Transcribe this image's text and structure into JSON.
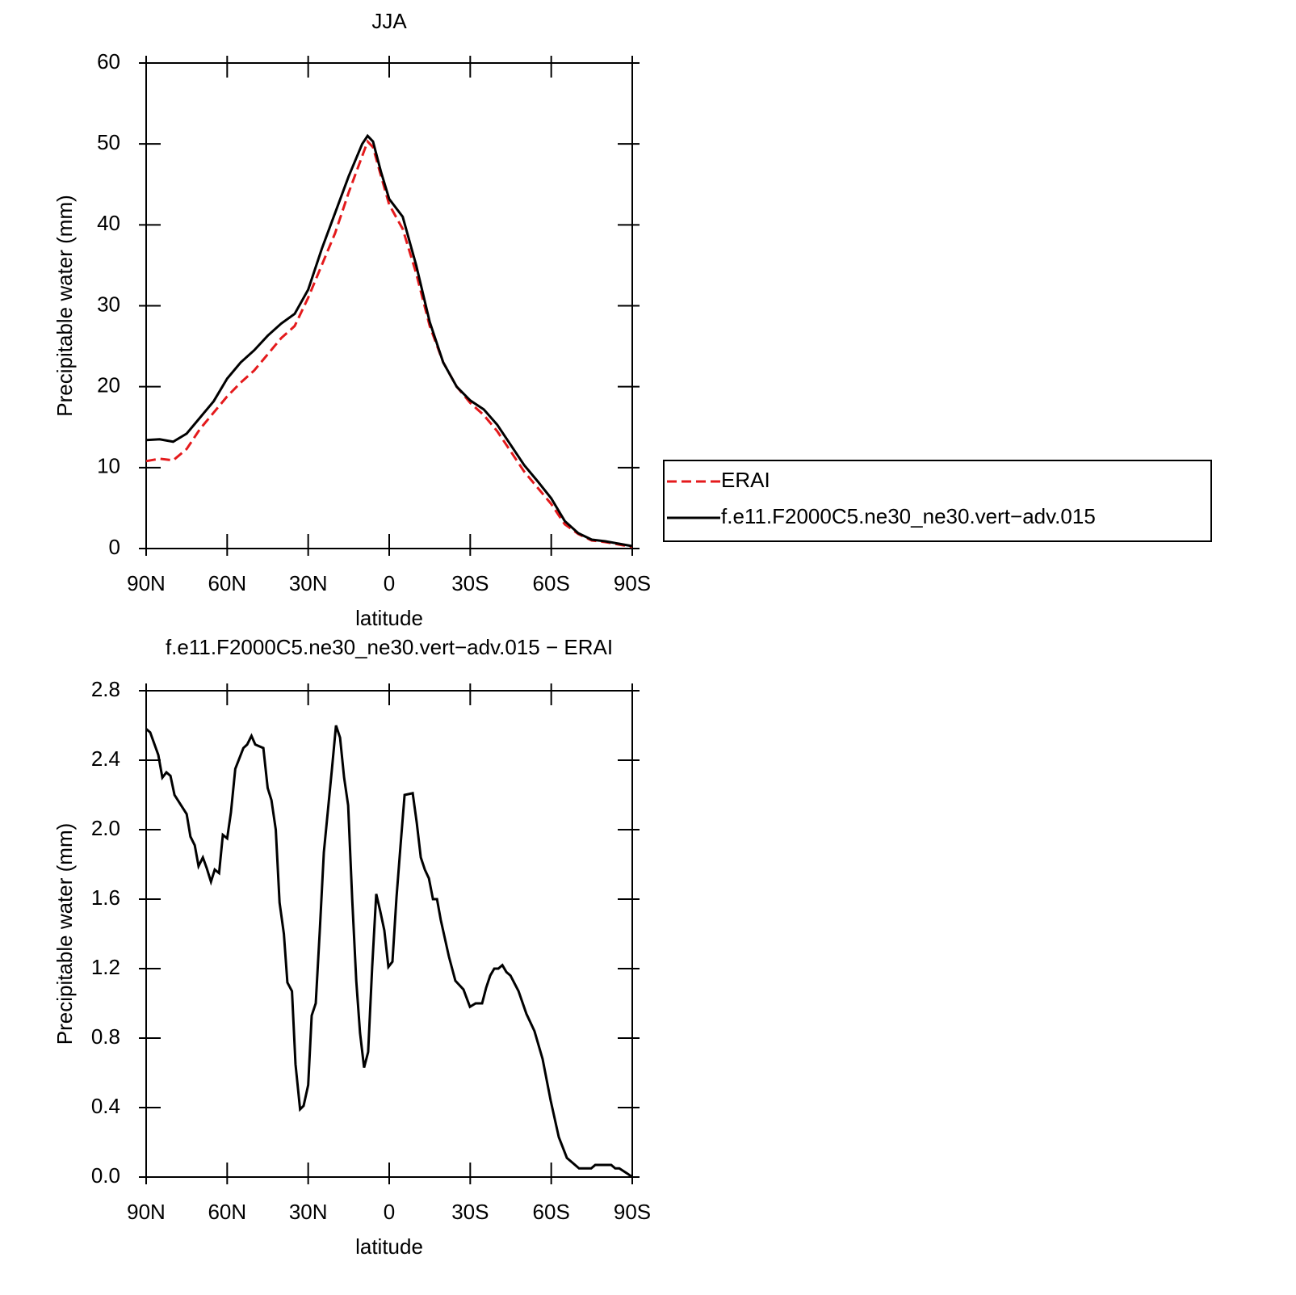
{
  "chart_data": [
    {
      "type": "line",
      "title": "JJA",
      "xlabel": "latitude",
      "ylabel": "Precipitable water (mm)",
      "x": [
        90,
        85,
        80,
        75,
        70,
        65,
        60,
        55,
        50,
        45,
        40,
        35,
        30,
        25,
        20,
        15,
        10,
        8,
        6,
        3,
        0,
        -5,
        -10,
        -15,
        -20,
        -25,
        -30,
        -35,
        -40,
        -45,
        -50,
        -55,
        -60,
        -65,
        -70,
        -75,
        -80,
        -85,
        -90
      ],
      "series": [
        {
          "name": "ERAI",
          "color": "#e41a1c",
          "dash": "dashed",
          "values": [
            10.8,
            11.1,
            10.9,
            12.3,
            14.8,
            16.8,
            18.8,
            20.5,
            22.0,
            24.0,
            26.0,
            27.5,
            31,
            35,
            39,
            44,
            48.5,
            50.3,
            49.6,
            46,
            42.5,
            39.5,
            34,
            27.5,
            23,
            20,
            18,
            16.5,
            14.5,
            12,
            9.5,
            7.5,
            5.5,
            3,
            1.8,
            1.0,
            0.8,
            0.5,
            0.2
          ]
        },
        {
          "name": "f.e11.F2000C5.ne30_ne30.vert−adv.015",
          "color": "#000000",
          "dash": "solid",
          "values": [
            13.4,
            13.5,
            13.2,
            14.2,
            16.2,
            18.2,
            21,
            23,
            24.5,
            26.3,
            27.8,
            29,
            32,
            37,
            41.5,
            46,
            50,
            51,
            50.3,
            46.5,
            43.2,
            41,
            35,
            28,
            23,
            20,
            18.3,
            17.2,
            15.3,
            12.8,
            10.3,
            8.3,
            6.2,
            3.4,
            1.9,
            1.1,
            0.9,
            0.6,
            0.3
          ]
        }
      ],
      "xlim": [
        90,
        -90
      ],
      "xticks": [
        {
          "value": 90,
          "label": "90N"
        },
        {
          "value": 60,
          "label": "60N"
        },
        {
          "value": 30,
          "label": "30N"
        },
        0,
        {
          "value": -30,
          "label": "30S"
        },
        {
          "value": -60,
          "label": "60S"
        },
        {
          "value": -90,
          "label": "90S"
        }
      ],
      "ylim": [
        0,
        60
      ],
      "yticks": [
        0,
        10,
        20,
        30,
        40,
        50,
        60
      ],
      "legend": "right"
    },
    {
      "type": "line",
      "title": "f.e11.F2000C5.ne30_ne30.vert−adv.015 − ERAI",
      "xlabel": "latitude",
      "ylabel": "Precipitable water (mm)",
      "x": [
        90,
        88.5,
        85.5,
        84,
        82.5,
        81,
        79.5,
        75,
        73.6,
        72,
        70.6,
        69,
        67.6,
        66,
        64.6,
        63,
        61.6,
        60,
        58.6,
        57,
        54,
        52.6,
        51,
        49.6,
        46.6,
        45,
        43.6,
        42,
        40.6,
        39,
        37.7,
        36,
        34.7,
        33,
        31.7,
        30,
        28.7,
        27.2,
        25.7,
        24.2,
        22.7,
        21.2,
        19.7,
        18.2,
        16.7,
        15.2,
        13.7,
        12.2,
        10.8,
        9.3,
        7.8,
        6.3,
        4.8,
        3.3,
        1.8,
        0.3,
        -1.2,
        -2.7,
        -4.2,
        -5.7,
        -8.7,
        -10.2,
        -11.7,
        -13.2,
        -14.7,
        -16.2,
        -17.7,
        -19.1,
        -22.1,
        -24.5,
        -27.5,
        -29.9,
        -32,
        -34.4,
        -35.9,
        -37.4,
        -38.9,
        -40.4,
        -41.9,
        -43.4,
        -44.9,
        -47.9,
        -50.8,
        -53.8,
        -56.8,
        -59.8,
        -62.8,
        -65.8,
        -67.3,
        -70.3,
        -74.8,
        -76.3,
        -82.2,
        -83.7,
        -85.2,
        -88.2,
        -90
      ],
      "series": [
        {
          "name": "f.e11.F2000C5.ne30_ne30.vert−adv.015 − ERAI",
          "color": "#000000",
          "dash": "solid",
          "values": [
            2.58,
            2.56,
            2.43,
            2.3,
            2.33,
            2.31,
            2.2,
            2.09,
            1.96,
            1.91,
            1.79,
            1.84,
            1.78,
            1.7,
            1.77,
            1.75,
            1.97,
            1.95,
            2.1,
            2.35,
            2.47,
            2.49,
            2.54,
            2.49,
            2.47,
            2.24,
            2.17,
            2.0,
            1.58,
            1.4,
            1.12,
            1.07,
            0.65,
            0.39,
            0.41,
            0.53,
            0.93,
            1.0,
            1.42,
            1.87,
            2.11,
            2.35,
            2.6,
            2.53,
            2.3,
            2.14,
            1.6,
            1.13,
            0.83,
            0.63,
            0.72,
            1.21,
            1.63,
            1.53,
            1.42,
            1.21,
            1.24,
            1.61,
            1.91,
            2.2,
            2.21,
            2.04,
            1.84,
            1.77,
            1.72,
            1.6,
            1.6,
            1.48,
            1.27,
            1.13,
            1.08,
            0.98,
            1.0,
            1.0,
            1.09,
            1.16,
            1.2,
            1.2,
            1.22,
            1.18,
            1.16,
            1.07,
            0.94,
            0.84,
            0.68,
            0.44,
            0.23,
            0.11,
            0.09,
            0.05,
            0.05,
            0.07,
            0.07,
            0.05,
            0.05,
            0.02,
            0.0
          ]
        }
      ],
      "xlim": [
        90,
        -90
      ],
      "xticks": [
        {
          "value": 90,
          "label": "90N"
        },
        {
          "value": 60,
          "label": "60N"
        },
        {
          "value": 30,
          "label": "30N"
        },
        0,
        {
          "value": -30,
          "label": "30S"
        },
        {
          "value": -60,
          "label": "60S"
        },
        {
          "value": -90,
          "label": "90S"
        }
      ],
      "ylim": [
        0,
        2.8
      ],
      "yticks": [
        {
          "value": 0,
          "label": "0.0"
        },
        0.4,
        0.8,
        1.2,
        1.6,
        {
          "value": 2,
          "label": "2.0"
        },
        2.4,
        2.8
      ]
    }
  ]
}
